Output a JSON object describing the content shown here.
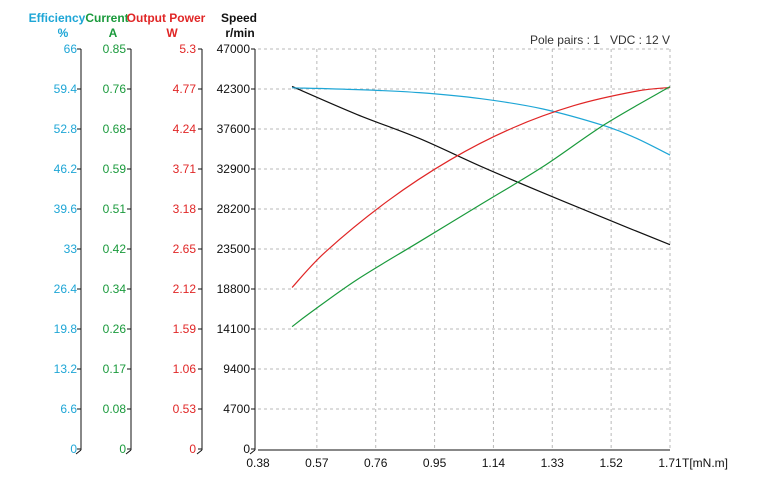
{
  "chart_data": {
    "type": "line",
    "annotation": "Pole pairs : 1   VDC : 12 V",
    "x_axis": {
      "label": "T[mN.m]",
      "range": [
        0.38,
        1.71
      ],
      "ticks": [
        "0.38",
        "0.57",
        "0.76",
        "0.95",
        "1.14",
        "1.33",
        "1.52",
        "1.71"
      ]
    },
    "y_axes": [
      {
        "key": "efficiency",
        "title": "Efficiency",
        "unit": "%",
        "color": "#1ea6d6",
        "range": [
          0,
          66
        ],
        "ticks": [
          "0",
          "6.6",
          "13.2",
          "19.8",
          "26.4",
          "33",
          "39.6",
          "46.2",
          "52.8",
          "59.4",
          "66"
        ]
      },
      {
        "key": "current",
        "title": "Current",
        "unit": "A",
        "color": "#1a9a3c",
        "range": [
          0,
          0.85
        ],
        "ticks": [
          "0",
          "0.08",
          "0.17",
          "0.26",
          "0.34",
          "0.42",
          "0.51",
          "0.59",
          "0.68",
          "0.76",
          "0.85"
        ]
      },
      {
        "key": "power",
        "title": "Output Power",
        "unit": "W",
        "color": "#e02626",
        "range": [
          0,
          5.3
        ],
        "ticks": [
          "0",
          "0.53",
          "1.06",
          "1.59",
          "2.12",
          "2.65",
          "3.18",
          "3.71",
          "4.24",
          "4.77",
          "5.3"
        ]
      },
      {
        "key": "speed",
        "title": "Speed",
        "unit": "r/min",
        "color": "#111111",
        "range": [
          0,
          47000
        ],
        "ticks": [
          "0",
          "4700",
          "9400",
          "14100",
          "18800",
          "23500",
          "28200",
          "32900",
          "37600",
          "42300",
          "47000"
        ]
      }
    ],
    "series": [
      {
        "axis": "speed",
        "color": "#111111",
        "x": [
          0.49,
          0.7,
          0.9,
          1.1,
          1.3,
          1.5,
          1.71
        ],
        "y": [
          42600,
          39300,
          36500,
          33200,
          30100,
          27100,
          24000
        ]
      },
      {
        "axis": "efficiency",
        "color": "#1ea6d6",
        "x": [
          0.49,
          0.7,
          0.9,
          1.1,
          1.3,
          1.5,
          1.6,
          1.71
        ],
        "y": [
          59.6,
          59.3,
          58.8,
          57.8,
          56.1,
          53.3,
          51.3,
          48.5
        ]
      },
      {
        "axis": "power",
        "color": "#e02626",
        "x": [
          0.49,
          0.6,
          0.8,
          1.0,
          1.2,
          1.4,
          1.6,
          1.71
        ],
        "y": [
          2.14,
          2.62,
          3.29,
          3.83,
          4.25,
          4.55,
          4.74,
          4.79
        ]
      },
      {
        "axis": "current",
        "color": "#1a9a3c",
        "x": [
          0.49,
          0.55,
          0.7,
          0.9,
          1.1,
          1.3,
          1.5,
          1.71
        ],
        "y": [
          0.26,
          0.29,
          0.36,
          0.44,
          0.52,
          0.6,
          0.69,
          0.77
        ]
      }
    ],
    "grid": true
  }
}
